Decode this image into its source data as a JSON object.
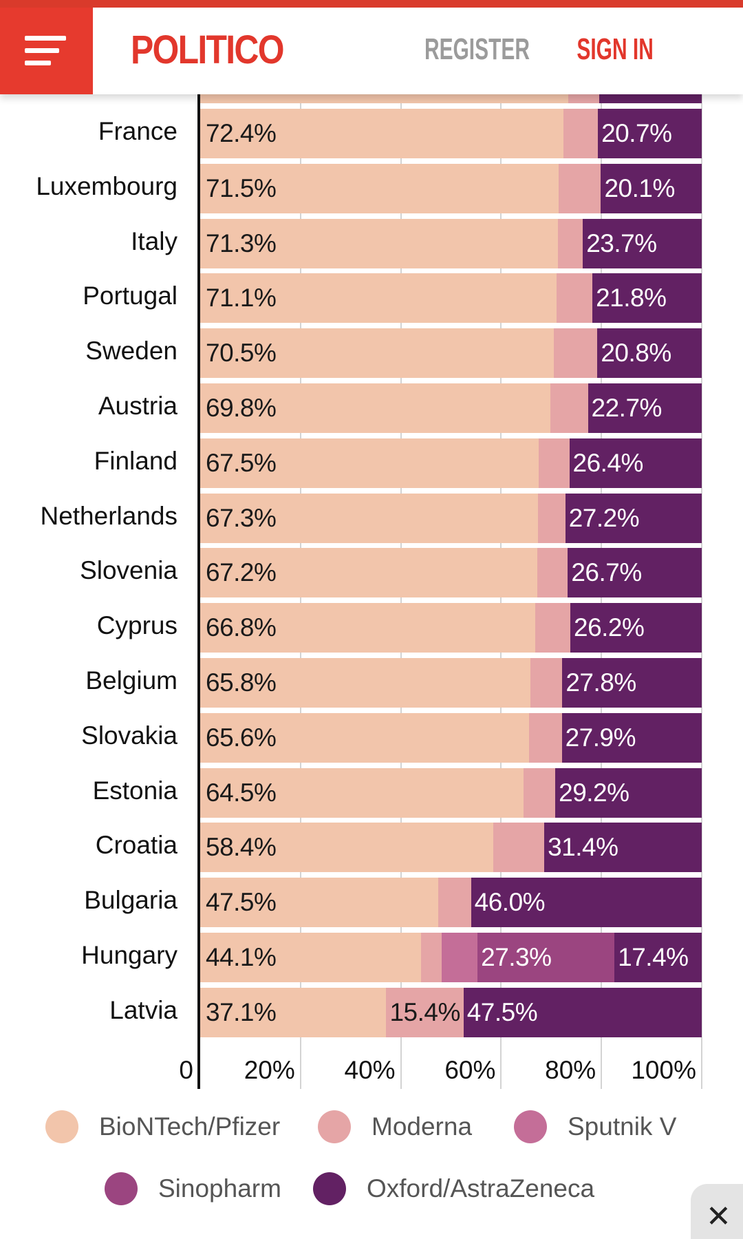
{
  "header": {
    "logo": "POLITICO",
    "register": "REGISTER",
    "sign_in": "SIGN IN"
  },
  "colors": {
    "BioNTech/Pfizer": "#f2c5ab",
    "Moderna": "#e5a5a6",
    "Sputnik V": "#c46e98",
    "Sinopharm": "#9b4580",
    "Oxford/AstraZeneca": "#622163"
  },
  "chart_data": {
    "type": "bar",
    "orientation": "horizontal",
    "stacked": true,
    "xlim": [
      0,
      100
    ],
    "xticks": [
      "0",
      "20%",
      "40%",
      "60%",
      "80%",
      "100%"
    ],
    "legend": [
      "BioNTech/Pfizer",
      "Moderna",
      "Sputnik V",
      "Sinopharm",
      "Oxford/AstraZeneca"
    ],
    "legend_placement": "bottom",
    "partial_top_row": [
      73.4,
      6.1,
      0,
      0,
      20.5
    ],
    "rows": [
      {
        "country": "France",
        "values": [
          72.4,
          6.9,
          0,
          0,
          20.7
        ]
      },
      {
        "country": "Luxembourg",
        "values": [
          71.5,
          8.4,
          0,
          0,
          20.1
        ]
      },
      {
        "country": "Italy",
        "values": [
          71.3,
          5.0,
          0,
          0,
          23.7
        ]
      },
      {
        "country": "Portugal",
        "values": [
          71.1,
          7.1,
          0,
          0,
          21.8
        ]
      },
      {
        "country": "Sweden",
        "values": [
          70.5,
          8.7,
          0,
          0,
          20.8
        ]
      },
      {
        "country": "Austria",
        "values": [
          69.8,
          7.5,
          0,
          0,
          22.7
        ]
      },
      {
        "country": "Finland",
        "values": [
          67.5,
          6.1,
          0,
          0,
          26.4
        ]
      },
      {
        "country": "Netherlands",
        "values": [
          67.3,
          5.5,
          0,
          0,
          27.2
        ]
      },
      {
        "country": "Slovenia",
        "values": [
          67.2,
          6.1,
          0,
          0,
          26.7
        ]
      },
      {
        "country": "Cyprus",
        "values": [
          66.8,
          7.0,
          0,
          0,
          26.2
        ]
      },
      {
        "country": "Belgium",
        "values": [
          65.8,
          6.4,
          0,
          0,
          27.8
        ]
      },
      {
        "country": "Slovakia",
        "values": [
          65.6,
          6.5,
          0,
          0,
          27.9
        ]
      },
      {
        "country": "Estonia",
        "values": [
          64.5,
          6.3,
          0,
          0,
          29.2
        ]
      },
      {
        "country": "Croatia",
        "values": [
          58.4,
          10.2,
          0,
          0,
          31.4
        ]
      },
      {
        "country": "Bulgaria",
        "values": [
          47.5,
          6.5,
          0,
          0,
          46.0
        ]
      },
      {
        "country": "Hungary",
        "values": [
          44.1,
          4.0,
          7.2,
          27.3,
          17.4
        ]
      },
      {
        "country": "Latvia",
        "values": [
          37.1,
          15.4,
          0,
          0,
          47.5
        ]
      }
    ]
  },
  "close_label": "✕"
}
